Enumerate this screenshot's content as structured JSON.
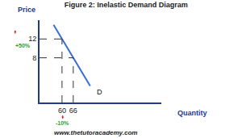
{
  "chart_data": {
    "type": "line",
    "title": "Figure 2: Inelastic Demand Diagram",
    "x_label": "Quantity",
    "y_label": "Price",
    "series": [
      {
        "name": "D",
        "color": "#3a6fd0",
        "x": [
          55.5,
          60,
          66,
          75
        ],
        "values": [
          15,
          12,
          8,
          2
        ]
      }
    ],
    "points": [
      {
        "x": 60,
        "y": 12
      },
      {
        "x": 66,
        "y": 8
      }
    ],
    "annotations": [
      {
        "text": "+50%",
        "color": "#2e9b2e"
      },
      {
        "text": "-10%",
        "color": "#2e9b2e"
      },
      {
        "text": "www.thetutoracademy.com"
      }
    ],
    "xlim": [
      48,
      113
    ],
    "ylim": [
      -1.5,
      16
    ],
    "xticks": [
      60,
      66
    ],
    "yticks": [
      8,
      12
    ],
    "grid": false
  }
}
